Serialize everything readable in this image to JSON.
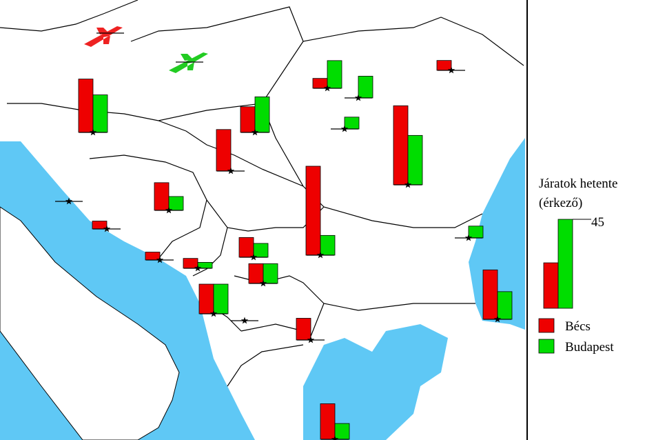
{
  "legend": {
    "title_line1": "Járatok hetente",
    "title_line2": "(érkező)",
    "values": [
      23,
      45
    ],
    "series": [
      {
        "name": "Bécs",
        "color": "#ee0000"
      },
      {
        "name": "Budapest",
        "color": "#00dd00"
      }
    ]
  },
  "locations": [
    {
      "vienna": 27,
      "budapest": 19
    },
    {
      "vienna": 13,
      "budapest": 18
    },
    {
      "vienna": 21,
      "budapest": 0
    },
    {
      "vienna": 5,
      "budapest": 14
    },
    {
      "vienna": 0,
      "budapest": 11
    },
    {
      "vienna": 0,
      "budapest": 6
    },
    {
      "vienna": 5,
      "budapest": 0
    },
    {
      "vienna": 40,
      "budapest": 25
    },
    {
      "vienna": 45,
      "budapest": 10
    },
    {
      "vienna": 14,
      "budapest": 7
    },
    {
      "vienna": 0,
      "budapest": 0
    },
    {
      "vienna": 4,
      "budapest": 0
    },
    {
      "vienna": 4,
      "budapest": 0
    },
    {
      "vienna": 5,
      "budapest": 3
    },
    {
      "vienna": 10,
      "budapest": 7
    },
    {
      "vienna": 10,
      "budapest": 10
    },
    {
      "vienna": 15,
      "budapest": 15
    },
    {
      "vienna": 0,
      "budapest": 0
    },
    {
      "vienna": 11,
      "budapest": 0
    },
    {
      "vienna": 0,
      "budapest": 6
    },
    {
      "vienna": 25,
      "budapest": 14
    },
    {
      "vienna": 18,
      "budapest": 8
    }
  ]
}
